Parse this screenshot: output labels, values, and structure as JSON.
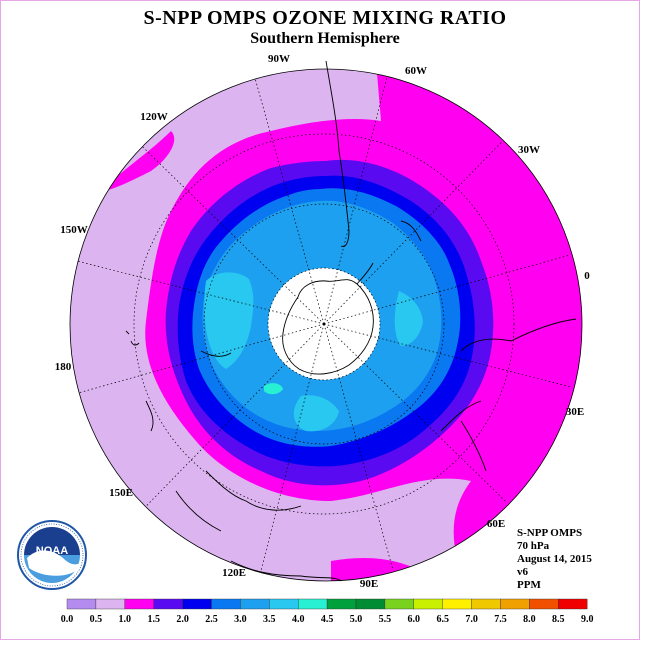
{
  "title": "S-NPP OMPS OZONE MIXING RATIO",
  "subtitle": "Southern Hemisphere",
  "lon_labels": [
    {
      "key": "90W",
      "text": "90W"
    },
    {
      "key": "60W",
      "text": "60W"
    },
    {
      "key": "30W",
      "text": "30W"
    },
    {
      "key": "120W",
      "text": "120W"
    },
    {
      "key": "150W",
      "text": "150W"
    },
    {
      "key": "0",
      "text": "0"
    },
    {
      "key": "180",
      "text": "180"
    },
    {
      "key": "30E",
      "text": "30E"
    },
    {
      "key": "150E",
      "text": "150E"
    },
    {
      "key": "60E",
      "text": "60E"
    },
    {
      "key": "120E",
      "text": "120E"
    },
    {
      "key": "90E",
      "text": "90E"
    }
  ],
  "info": {
    "instrument": "S-NPP OMPS",
    "level": "70 hPa",
    "date": "August 14, 2015",
    "version": "v6",
    "units": "PPM"
  },
  "logo_text": "NOAA",
  "colorbar": {
    "ticks": [
      "0.0",
      "0.5",
      "1.0",
      "1.5",
      "2.0",
      "2.5",
      "3.0",
      "3.5",
      "4.0",
      "4.5",
      "5.0",
      "5.5",
      "6.0",
      "6.5",
      "7.0",
      "7.5",
      "8.0",
      "8.5",
      "9.0"
    ],
    "colors": [
      "#b48cf0",
      "#dcb4f0",
      "#ff00f0",
      "#5a0af0",
      "#0000f0",
      "#0a78f0",
      "#1ea0f0",
      "#28c8f0",
      "#28f0d2",
      "#00a03c",
      "#008c32",
      "#78d21e",
      "#c8f000",
      "#fff000",
      "#f0c800",
      "#f0a000",
      "#f05000",
      "#f00000",
      "#8c5a32"
    ]
  },
  "map_colors": {
    "lightest": "#dcb4f0",
    "magenta": "#ff00f0",
    "indigo": "#5a0af0",
    "blue": "#0000f0",
    "mid_blue": "#0a78f0",
    "sky": "#1ea0f0",
    "light_cyan": "#28c8f0",
    "aqua": "#28f0d2",
    "center": "#ffffff"
  }
}
